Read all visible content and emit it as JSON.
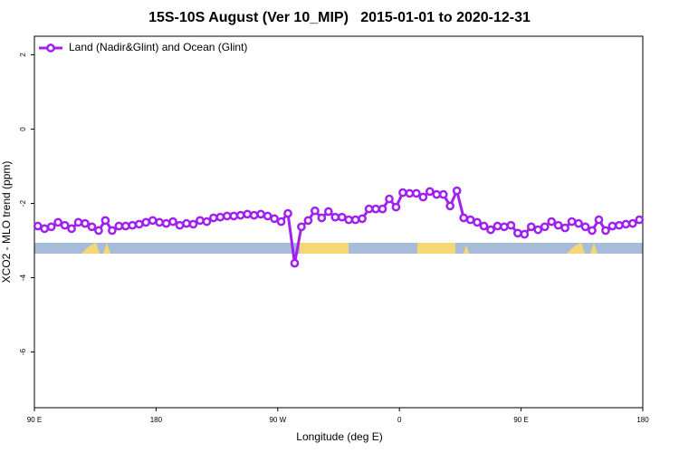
{
  "chart_data": {
    "type": "line",
    "title": "15S-10S August (Ver 10_MIP)   2015-01-01 to 2020-12-31",
    "x_label": "Longitude (deg E)",
    "y_label": "XCO2 - MLO trend (ppm)",
    "xlim": [
      90,
      540
    ],
    "xticks": [
      {
        "value": 90,
        "label": "90 E"
      },
      {
        "value": 180,
        "label": "180"
      },
      {
        "value": 270,
        "label": "90 W"
      },
      {
        "value": 360,
        "label": "0"
      },
      {
        "value": 450,
        "label": "90 E"
      },
      {
        "value": 540,
        "label": "180"
      }
    ],
    "ylim": [
      -7.5,
      2.5
    ],
    "yticks": [
      2,
      0,
      -2,
      -4,
      -6
    ],
    "legend": "top-left",
    "x": [
      92.5,
      97.5,
      102.5,
      107.5,
      112.5,
      117.5,
      122.5,
      127.5,
      132.5,
      137.5,
      142.5,
      147.5,
      152.5,
      157.5,
      162.5,
      167.5,
      172.5,
      177.5,
      182.5,
      187.5,
      192.5,
      197.5,
      202.5,
      207.5,
      212.5,
      217.5,
      222.5,
      227.5,
      232.5,
      237.5,
      242.5,
      247.5,
      252.5,
      257.5,
      262.5,
      267.5,
      272.5,
      277.5,
      282.5,
      287.5,
      292.5,
      297.5,
      302.5,
      307.5,
      312.5,
      317.5,
      322.5,
      327.5,
      332.5,
      337.5,
      342.5,
      347.5,
      352.5,
      357.5,
      362.5,
      367.5,
      372.5,
      377.5,
      382.5,
      387.5,
      392.5,
      397.5,
      402.5,
      407.5,
      412.5,
      417.5,
      422.5,
      427.5,
      432.5,
      437.5,
      442.5,
      447.5,
      452.5,
      457.5,
      462.5,
      467.5,
      472.5,
      477.5,
      482.5,
      487.5,
      492.5,
      497.5,
      502.5,
      507.5,
      512.5,
      517.5,
      522.5,
      527.5,
      532.5,
      537.5
    ],
    "series": [
      {
        "name": "Land (Nadir&Glint) and Ocean (Glint)",
        "color": "#a020f0",
        "values": [
          -2.61,
          -2.68,
          -2.63,
          -2.51,
          -2.59,
          -2.68,
          -2.51,
          -2.54,
          -2.63,
          -2.73,
          -2.46,
          -2.73,
          -2.61,
          -2.61,
          -2.59,
          -2.56,
          -2.51,
          -2.46,
          -2.51,
          -2.54,
          -2.49,
          -2.59,
          -2.54,
          -2.56,
          -2.46,
          -2.49,
          -2.39,
          -2.37,
          -2.34,
          -2.34,
          -2.32,
          -2.29,
          -2.32,
          -2.29,
          -2.34,
          -2.41,
          -2.49,
          -2.27,
          -3.61,
          -2.63,
          -2.46,
          -2.2,
          -2.39,
          -2.22,
          -2.37,
          -2.37,
          -2.44,
          -2.44,
          -2.41,
          -2.15,
          -2.15,
          -2.15,
          -1.88,
          -2.1,
          -1.71,
          -1.73,
          -1.73,
          -1.83,
          -1.68,
          -1.76,
          -1.76,
          -2.07,
          -1.66,
          -2.39,
          -2.44,
          -2.51,
          -2.61,
          -2.71,
          -2.61,
          -2.63,
          -2.59,
          -2.8,
          -2.83,
          -2.63,
          -2.71,
          -2.63,
          -2.49,
          -2.59,
          -2.66,
          -2.49,
          -2.54,
          -2.63,
          -2.73,
          -2.44,
          -2.73,
          -2.61,
          -2.59,
          -2.56,
          -2.54,
          -2.44
        ]
      }
    ]
  }
}
